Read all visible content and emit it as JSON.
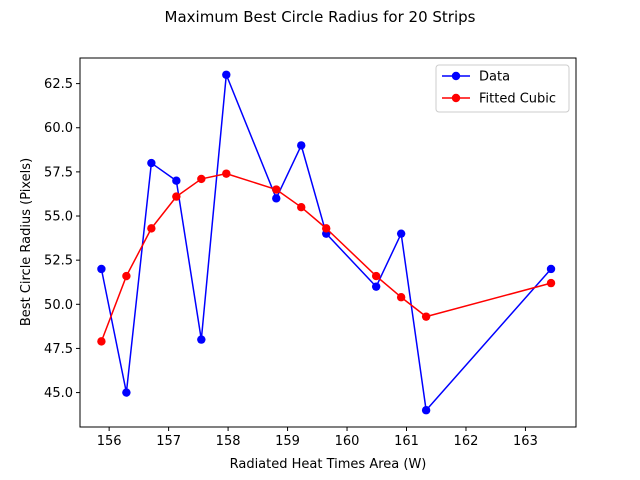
{
  "chart_data": {
    "type": "line",
    "title": "Maximum Best Circle Radius for 20 Strips",
    "xlabel": "Radiated Heat Times Area (W)",
    "ylabel": "Best Circle Radius (Pixels)",
    "xlim": [
      155.51,
      163.85
    ],
    "ylim": [
      43.05,
      63.95
    ],
    "xticks": [
      156,
      157,
      158,
      159,
      160,
      161,
      162,
      163
    ],
    "yticks": [
      45.0,
      47.5,
      50.0,
      52.5,
      55.0,
      57.5,
      60.0,
      62.5
    ],
    "xtick_labels": [
      "156",
      "157",
      "158",
      "159",
      "160",
      "161",
      "162",
      "163"
    ],
    "ytick_labels": [
      "45.0",
      "47.5",
      "50.0",
      "52.5",
      "55.0",
      "57.5",
      "60.0",
      "62.5"
    ],
    "grid": false,
    "legend_position": "upper right",
    "series": [
      {
        "name": "Data",
        "color": "#0000ff",
        "marker": "circle",
        "x": [
          155.87,
          156.29,
          156.71,
          157.13,
          157.55,
          157.97,
          158.81,
          159.23,
          159.65,
          160.49,
          160.91,
          161.33,
          163.43
        ],
        "y": [
          52,
          45,
          58,
          57,
          48,
          63,
          56,
          59,
          54,
          51,
          54,
          44,
          52
        ]
      },
      {
        "name": "Fitted Cubic",
        "color": "#ff0000",
        "marker": "circle",
        "x": [
          155.87,
          156.29,
          156.71,
          157.13,
          157.55,
          157.97,
          158.81,
          159.23,
          159.65,
          160.49,
          160.91,
          161.33,
          163.43
        ],
        "y": [
          47.9,
          51.6,
          54.3,
          56.1,
          57.1,
          57.4,
          56.5,
          55.5,
          54.3,
          51.6,
          50.4,
          49.3,
          51.2
        ]
      }
    ]
  }
}
